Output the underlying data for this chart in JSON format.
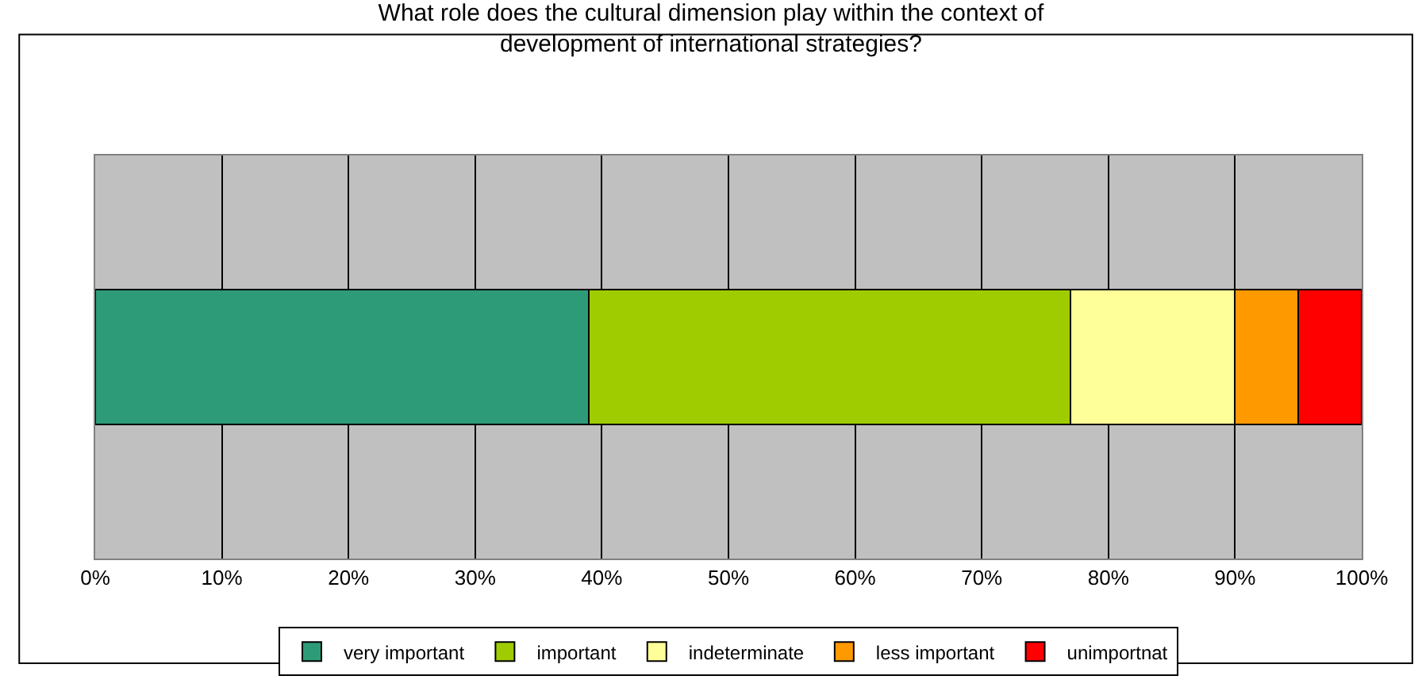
{
  "chart_data": {
    "type": "bar",
    "orientation": "horizontal",
    "stacked": true,
    "title": "What role does the cultural dimension play within the context of\ndevelopment of international strategies?",
    "categories": [
      null
    ],
    "series": [
      {
        "name": "very important",
        "color": "#2e9b78",
        "values": [
          39
        ]
      },
      {
        "name": "important",
        "color": "#9fcc00",
        "values": [
          38
        ]
      },
      {
        "name": "indeterminate",
        "color": "#ffff99",
        "values": [
          13
        ]
      },
      {
        "name": "less important",
        "color": "#ff9900",
        "values": [
          5
        ]
      },
      {
        "name": "unimportnat",
        "color": "#ff0000",
        "values": [
          5
        ]
      }
    ],
    "xlim": [
      0,
      100
    ],
    "xticks": [
      {
        "value": 0,
        "label": "0%"
      },
      {
        "value": 10,
        "label": "10%"
      },
      {
        "value": 20,
        "label": "20%"
      },
      {
        "value": 30,
        "label": "30%"
      },
      {
        "value": 40,
        "label": "40%"
      },
      {
        "value": 50,
        "label": "50%"
      },
      {
        "value": 60,
        "label": "60%"
      },
      {
        "value": 70,
        "label": "70%"
      },
      {
        "value": 80,
        "label": "80%"
      },
      {
        "value": 90,
        "label": "90%"
      },
      {
        "value": 100,
        "label": "100%"
      }
    ],
    "grid": "x",
    "legend": "bottom",
    "tick_labels": "x"
  }
}
